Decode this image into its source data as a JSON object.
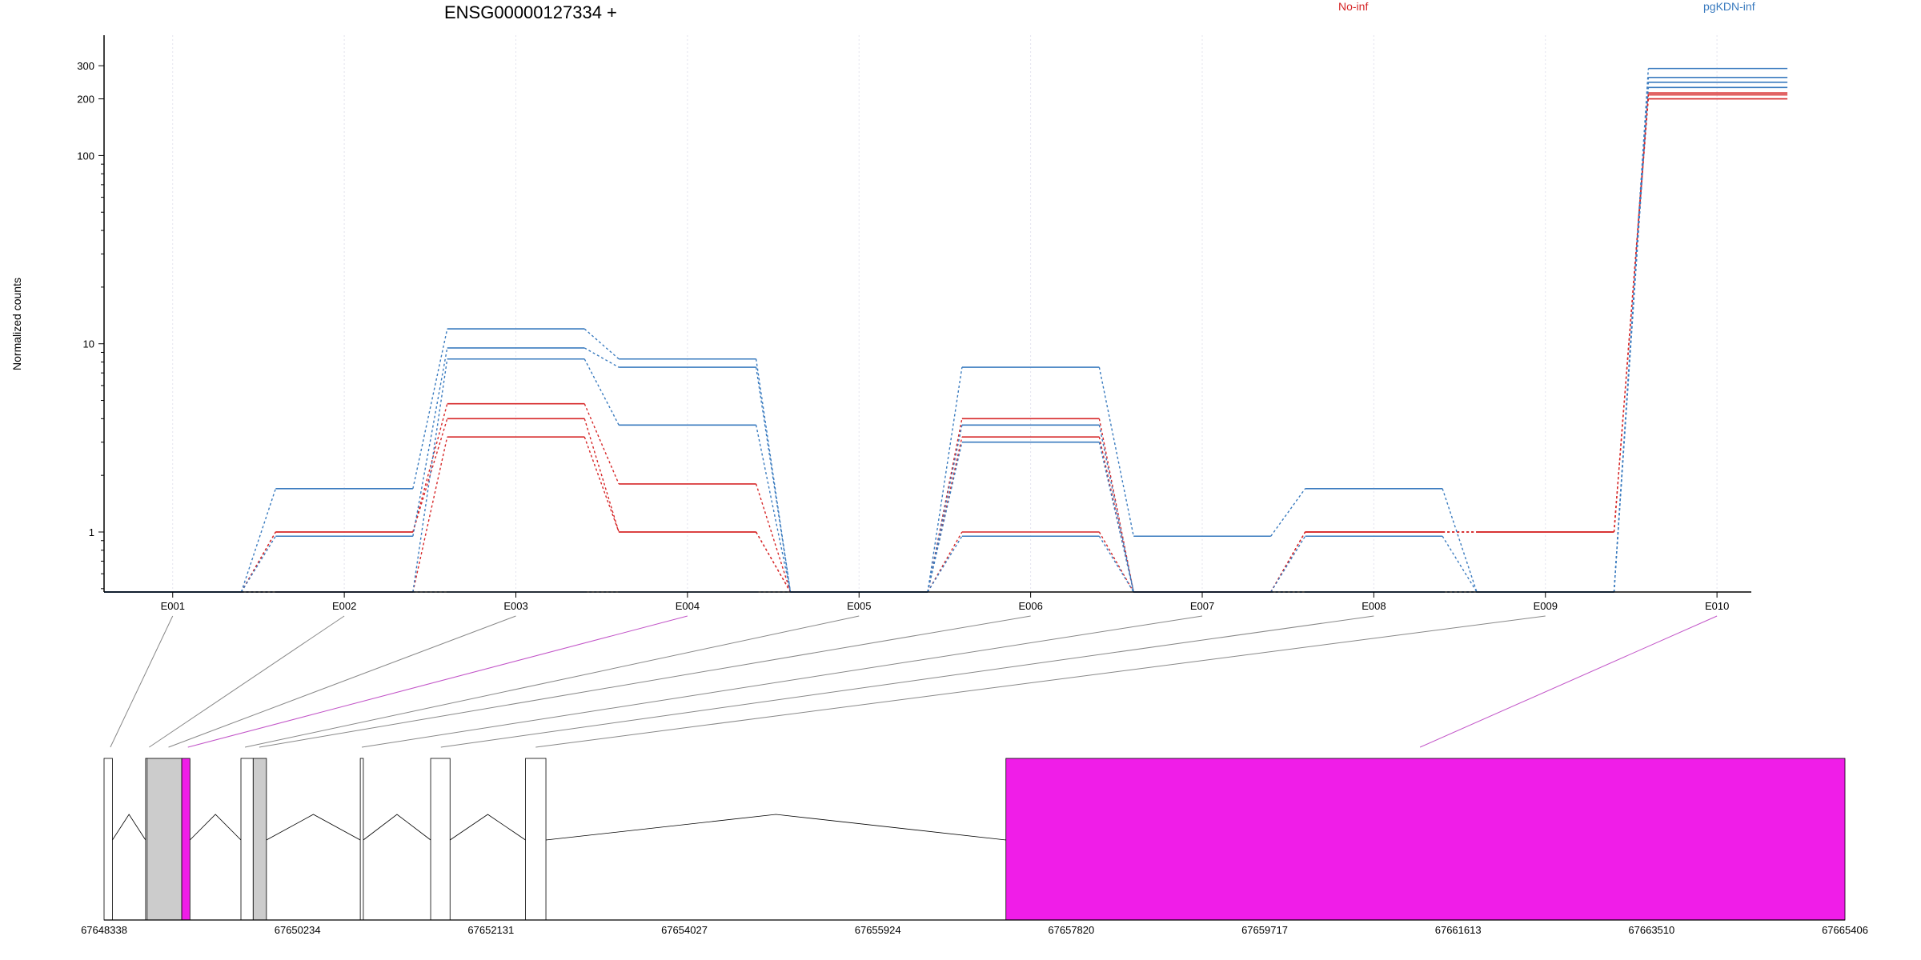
{
  "chart_data": {
    "type": "line",
    "title": "ENSG00000127334 +",
    "ylabel": "Normalized counts",
    "yscale": "log",
    "ylim": [
      0.48,
      380
    ],
    "yticks": [
      1,
      10,
      100,
      200,
      300
    ],
    "grid": "vertical dotted at exon centers",
    "legend": [
      {
        "label": "No-inf",
        "color": "#d62728"
      },
      {
        "label": "pgKDN-inf",
        "color": "#3a7bbf"
      }
    ],
    "categories": [
      "E001",
      "E002",
      "E003",
      "E004",
      "E005",
      "E006",
      "E007",
      "E008",
      "E009",
      "E010"
    ],
    "series": [
      {
        "group": "No-inf",
        "color": "#d62728",
        "values": [
          0.48,
          1.0,
          4.8,
          1.8,
          0.48,
          4.0,
          0.48,
          1.0,
          1.0,
          200
        ]
      },
      {
        "group": "No-inf",
        "color": "#d62728",
        "values": [
          0.48,
          1.0,
          4.0,
          1.0,
          0.48,
          3.2,
          0.48,
          1.0,
          1.0,
          210
        ]
      },
      {
        "group": "No-inf",
        "color": "#d62728",
        "values": [
          0.48,
          0.48,
          3.2,
          1.0,
          0.48,
          1.0,
          0.48,
          1.0,
          1.0,
          215
        ]
      },
      {
        "group": "pgKDN-inf",
        "color": "#3a7bbf",
        "values": [
          0.48,
          1.7,
          12.0,
          8.3,
          0.48,
          7.5,
          0.95,
          1.7,
          0.48,
          290
        ]
      },
      {
        "group": "pgKDN-inf",
        "color": "#3a7bbf",
        "values": [
          0.48,
          0.95,
          9.5,
          7.5,
          0.48,
          3.7,
          0.48,
          0.48,
          0.48,
          260
        ]
      },
      {
        "group": "pgKDN-inf",
        "color": "#3a7bbf",
        "values": [
          0.48,
          0.48,
          8.3,
          3.7,
          0.48,
          3.0,
          0.48,
          0.95,
          0.48,
          245
        ]
      },
      {
        "group": "pgKDN-inf",
        "color": "#3a7bbf",
        "values": [
          0.48,
          0.48,
          0.48,
          0.48,
          0.48,
          0.95,
          0.48,
          0.48,
          0.48,
          230
        ]
      }
    ],
    "gene_model": {
      "coordinate_ticks": [
        "67648338",
        "67650234",
        "67652131",
        "67654027",
        "67655924",
        "67657820",
        "67659717",
        "67661613",
        "67663510",
        "67665406"
      ],
      "range": [
        67648338,
        67665406
      ],
      "exons": [
        {
          "start": 67648338,
          "end": 67648420,
          "fill": "#ffffff"
        },
        {
          "start": 67648745,
          "end": 67648760,
          "fill": "#ffffff"
        },
        {
          "start": 67648760,
          "end": 67649100,
          "fill": "#cccccc"
        },
        {
          "start": 67649100,
          "end": 67649180,
          "fill": "#f01de8"
        },
        {
          "start": 67649680,
          "end": 67649800,
          "fill": "#ffffff"
        },
        {
          "start": 67649800,
          "end": 67649930,
          "fill": "#cccccc"
        },
        {
          "start": 67650850,
          "end": 67650880,
          "fill": "#ffffff"
        },
        {
          "start": 67651540,
          "end": 67651730,
          "fill": "#ffffff"
        },
        {
          "start": 67652470,
          "end": 67652670,
          "fill": "#ffffff"
        },
        {
          "start": 67657180,
          "end": 67665406,
          "fill": "#f01de8"
        }
      ],
      "connectors": [
        {
          "exon": "E001",
          "gene_pos": 67648400,
          "highlight": false
        },
        {
          "exon": "E002",
          "gene_pos": 67648780,
          "highlight": false
        },
        {
          "exon": "E003",
          "gene_pos": 67648970,
          "highlight": false
        },
        {
          "exon": "E004",
          "gene_pos": 67649160,
          "highlight": true
        },
        {
          "exon": "E005",
          "gene_pos": 67649720,
          "highlight": false
        },
        {
          "exon": "E006",
          "gene_pos": 67649860,
          "highlight": false
        },
        {
          "exon": "E007",
          "gene_pos": 67650865,
          "highlight": false
        },
        {
          "exon": "E008",
          "gene_pos": 67651640,
          "highlight": false
        },
        {
          "exon": "E009",
          "gene_pos": 67652570,
          "highlight": false
        },
        {
          "exon": "E010",
          "gene_pos": 67661240,
          "highlight": true
        }
      ]
    }
  }
}
